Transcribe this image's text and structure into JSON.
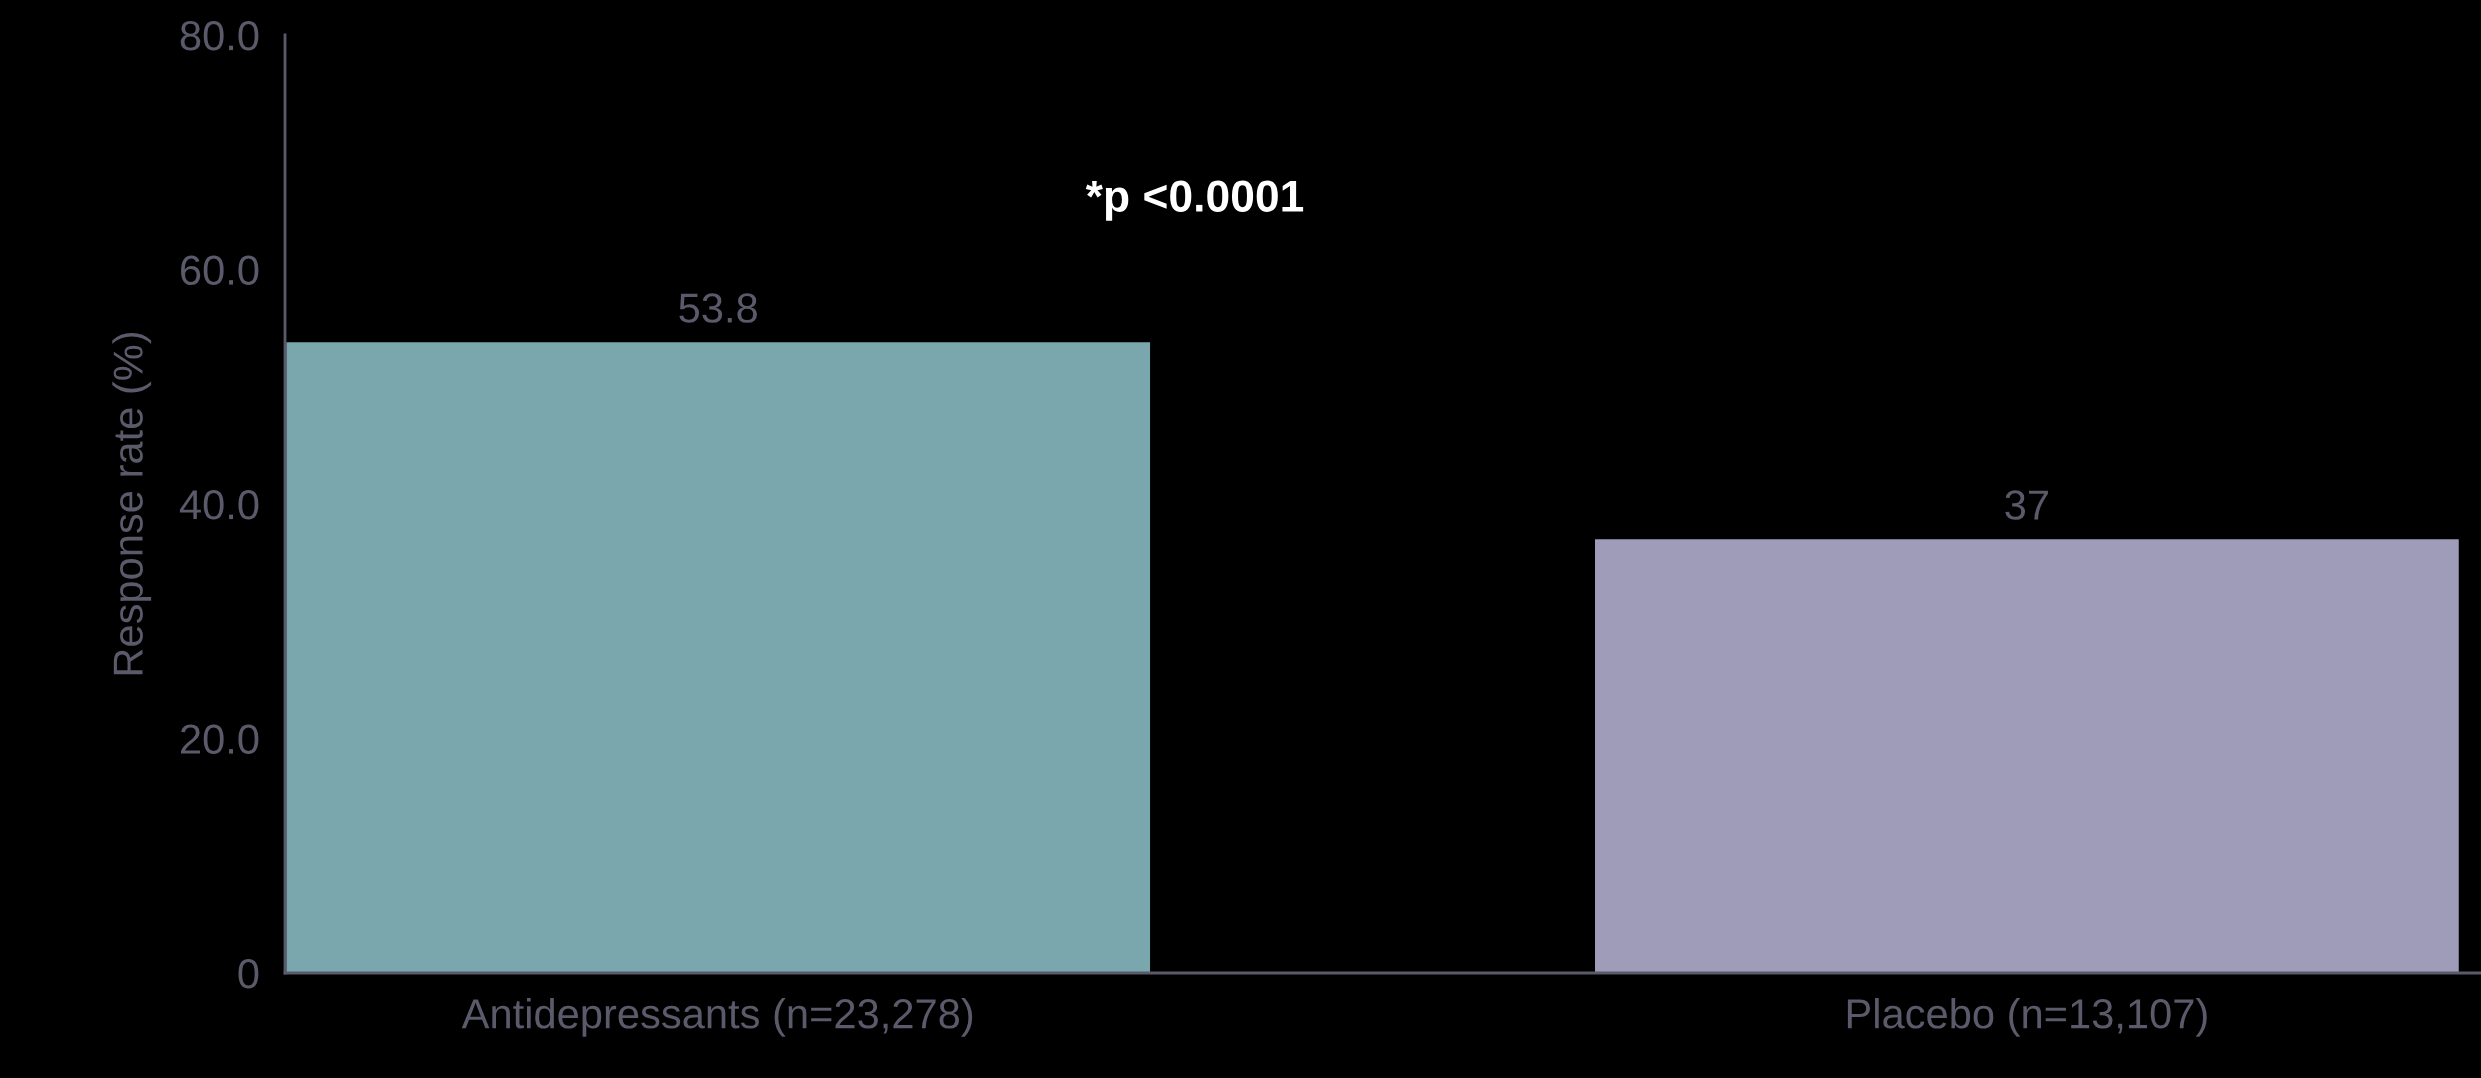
{
  "chart_data": {
    "type": "bar",
    "ylabel": "Response rate (%)",
    "categories": [
      "Antidepressants (n=23,278)",
      "Placebo (n=13,107)"
    ],
    "values": [
      53.8,
      37
    ],
    "colors": [
      "#7aa6ae",
      "#9e9cb8"
    ],
    "value_labels": [
      "53.8",
      "37"
    ],
    "ylim": [
      0,
      80
    ],
    "yticks": [
      0,
      {
        "value": 20,
        "label": "20.0"
      },
      {
        "value": 40,
        "label": "40.0"
      },
      {
        "value": 60,
        "label": "60.0"
      },
      {
        "value": 80,
        "label": "80.0"
      }
    ],
    "annotations": [
      "*p <0.0001"
    ],
    "grid": false,
    "legend": false
  }
}
